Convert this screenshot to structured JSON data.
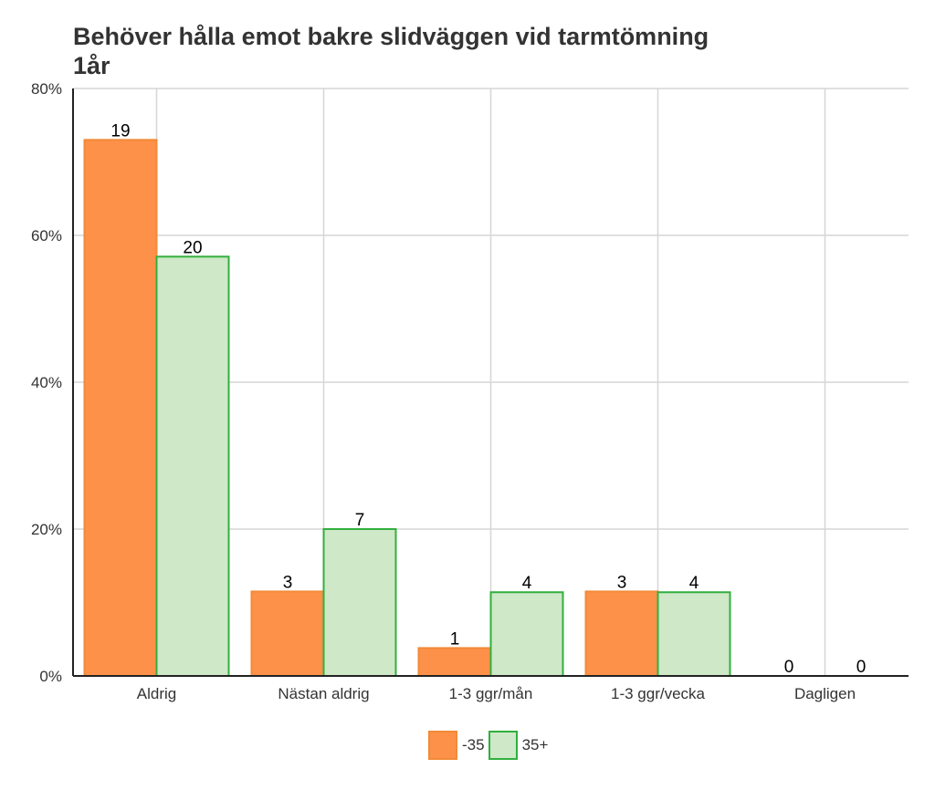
{
  "chart_data": {
    "type": "bar",
    "title": "Behöver hålla emot bakre slidväggen vid tarmtömning",
    "subtitle": "1år",
    "categories": [
      "Aldrig",
      "Nästan aldrig",
      "1-3 ggr/mån",
      "1-3 ggr/vecka",
      "Dagligen"
    ],
    "series": [
      {
        "name": "-35",
        "values": [
          73,
          11.5,
          3.8,
          11.5,
          0
        ],
        "labels": [
          "19",
          "3",
          "1",
          "3",
          "0"
        ],
        "fill": "#FD9149",
        "stroke": "#F28A37"
      },
      {
        "name": "35+",
        "values": [
          57.1,
          20,
          11.4,
          11.4,
          0
        ],
        "labels": [
          "20",
          "7",
          "4",
          "4",
          "0"
        ],
        "fill": "#CEE8C8",
        "stroke": "#33AF3E"
      }
    ],
    "ylim": [
      0,
      80
    ],
    "yticks": [
      "0%",
      "20%",
      "40%",
      "60%",
      "80%"
    ],
    "xlabel": "",
    "ylabel": "",
    "grid": true,
    "legend_position": "bottom"
  }
}
